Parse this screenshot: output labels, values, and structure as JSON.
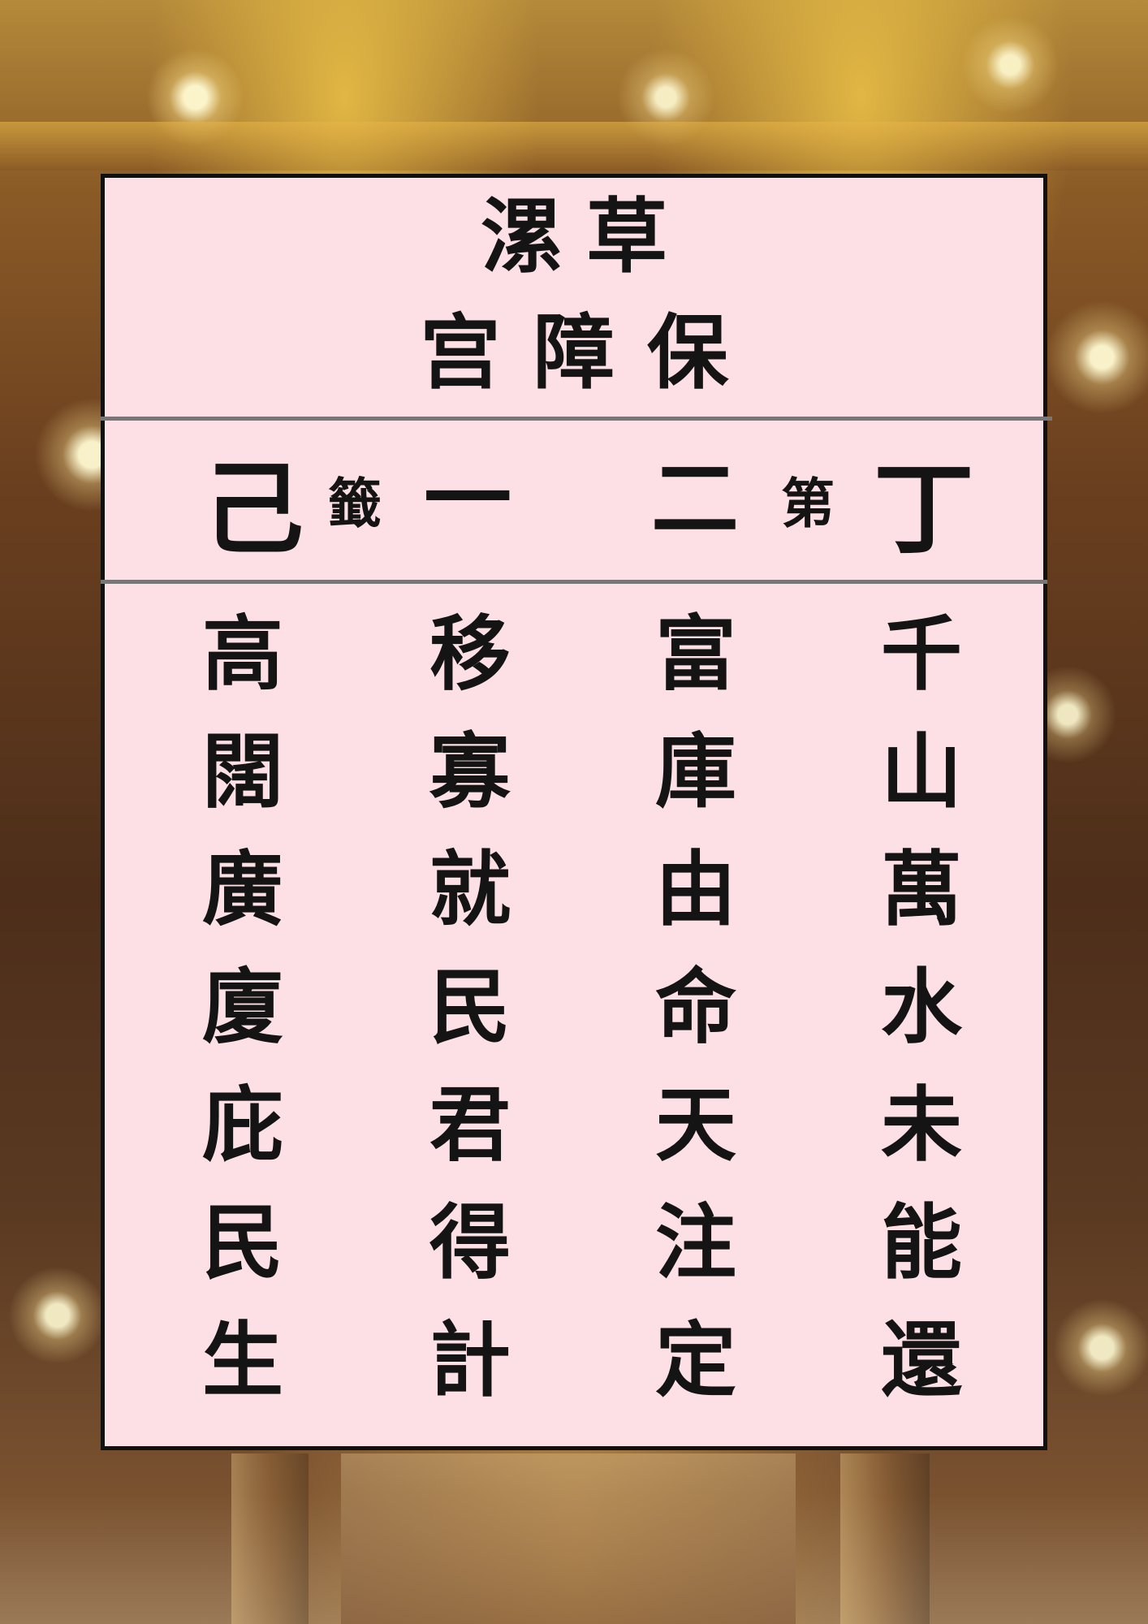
{
  "title": {
    "line1": "漯草",
    "line2": "宫障保"
  },
  "signature_row": [
    "己",
    "籤",
    "一",
    "二",
    "第",
    "丁"
  ],
  "poem_columns": [
    [
      "高",
      "闊",
      "廣",
      "廈",
      "庇",
      "民",
      "生"
    ],
    [
      "移",
      "寡",
      "就",
      "民",
      "君",
      "得",
      "計"
    ],
    [
      "富",
      "庫",
      "由",
      "命",
      "天",
      "注",
      "定"
    ],
    [
      "千",
      "山",
      "萬",
      "水",
      "未",
      "能",
      "還"
    ]
  ],
  "colors": {
    "panel_background": "#fde0e5",
    "panel_border": "#111111",
    "divider": "#777777",
    "text": "#141414"
  }
}
